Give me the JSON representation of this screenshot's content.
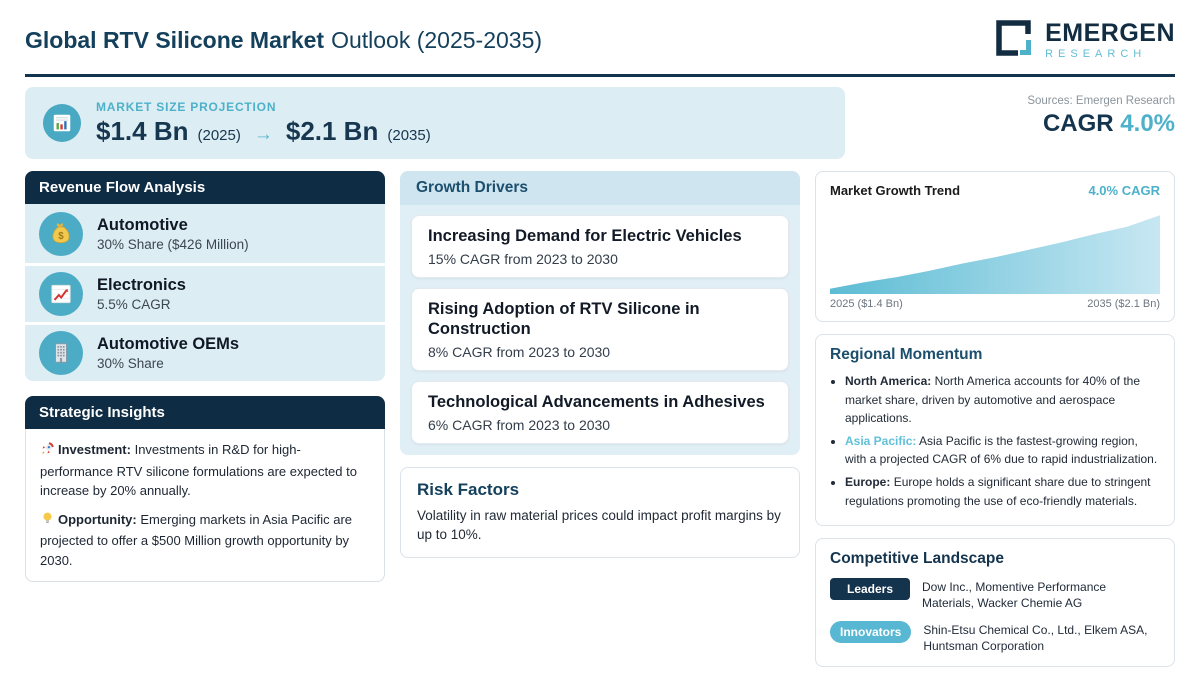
{
  "header": {
    "title_bold": "Global RTV Silicone Market",
    "title_rest": "Outlook (2025-2035)",
    "logo_line1": "EMERGEN",
    "logo_line2": "RESEARCH"
  },
  "hero": {
    "label": "MARKET SIZE PROJECTION",
    "start_value": "$1.4 Bn",
    "start_year": "(2025)",
    "arrow": "→",
    "end_value": "$2.1 Bn",
    "end_year": "(2035)",
    "sources": "Sources: Emergen Research",
    "cagr_label": "CAGR",
    "cagr_value": "4.0%"
  },
  "revenue_flow": {
    "title": "Revenue Flow Analysis",
    "items": [
      {
        "icon": "money-bag-icon",
        "title": "Automotive",
        "subtitle": "30% Share ($426 Million)"
      },
      {
        "icon": "chart-increasing-icon",
        "title": "Electronics",
        "subtitle": "5.5% CAGR"
      },
      {
        "icon": "office-building-icon",
        "title": "Automotive OEMs",
        "subtitle": "30% Share"
      }
    ]
  },
  "strategic_insights": {
    "title": "Strategic Insights",
    "items": [
      {
        "icon": "rocket-icon",
        "label": "Investment:",
        "text": "Investments in R&D for high-performance RTV silicone formulations are expected to increase by 20% annually."
      },
      {
        "icon": "light-bulb-icon",
        "label": "Opportunity:",
        "text": "Emerging markets in Asia Pacific are projected to offer a $500 Million growth opportunity by 2030."
      }
    ]
  },
  "growth_drivers": {
    "title": "Growth Drivers",
    "items": [
      {
        "title": "Increasing Demand for Electric Vehicles",
        "subtitle": "15% CAGR from 2023 to 2030"
      },
      {
        "title": "Rising Adoption of RTV Silicone in Construction",
        "subtitle": "8% CAGR from 2023 to 2030"
      },
      {
        "title": "Technological Advancements in Adhesives",
        "subtitle": "6% CAGR from 2023 to 2030"
      }
    ]
  },
  "risk_factors": {
    "title": "Risk Factors",
    "text": "Volatility in raw material prices could impact profit margins by up to 10%."
  },
  "growth_trend": {
    "title": "Market Growth Trend",
    "badge": "4.0% CAGR",
    "x_start": "2025 ($1.4 Bn)",
    "x_end": "2035 ($2.1 Bn)",
    "chart_data": {
      "type": "area",
      "x": [
        2025,
        2026,
        2027,
        2028,
        2029,
        2030,
        2031,
        2032,
        2033,
        2034,
        2035
      ],
      "values": [
        1.4,
        1.46,
        1.51,
        1.57,
        1.64,
        1.7,
        1.77,
        1.84,
        1.92,
        1.99,
        2.1
      ],
      "title": "Market Growth Trend",
      "annotation": "4.0% CAGR",
      "x_tick_labels": [
        "2025 ($1.4 Bn)",
        "2035 ($2.1 Bn)"
      ],
      "ylim": [
        1.35,
        2.15
      ],
      "grid": false,
      "legend": false
    }
  },
  "regional_momentum": {
    "title": "Regional Momentum",
    "items": [
      {
        "label": "North America:",
        "text": "North America accounts for 40% of the market share, driven by automotive and aerospace applications."
      },
      {
        "label": "Asia Pacific:",
        "text": "Asia Pacific is the fastest-growing region, with a projected CAGR of 6% due to rapid industrialization."
      },
      {
        "label": "Europe:",
        "text": "Europe holds a significant share due to stringent regulations promoting the use of eco-friendly materials."
      }
    ]
  },
  "competitive_landscape": {
    "title": "Competitive Landscape",
    "rows": [
      {
        "badge": "Leaders",
        "companies": "Dow Inc., Momentive Performance Materials, Wacker Chemie AG"
      },
      {
        "badge": "Innovators",
        "companies": "Shin-Etsu Chemical Co., Ltd., Elkem ASA, Huntsman Corporation"
      }
    ]
  },
  "icons": {
    "bar-chart-icon": "📊",
    "money-bag-icon": "💰",
    "chart-increasing-icon": "📈",
    "office-building-icon": "🏢",
    "rocket-icon": "🚀",
    "light-bulb-icon": "💡"
  },
  "colors": {
    "navy": "#0e2c44",
    "title_navy": "#14405c",
    "teal_accent": "#4db1ca",
    "asia_pacific_label": "#5fc0d8",
    "light_blue_bg": "#ddedf4",
    "growth_header_bg": "#cfe5ef",
    "leaders_badge": "#14334d",
    "innovators_badge": "#58b7d3",
    "area_gradient_start": "#5cbcd4",
    "area_gradient_end": "#c7e7f2"
  }
}
